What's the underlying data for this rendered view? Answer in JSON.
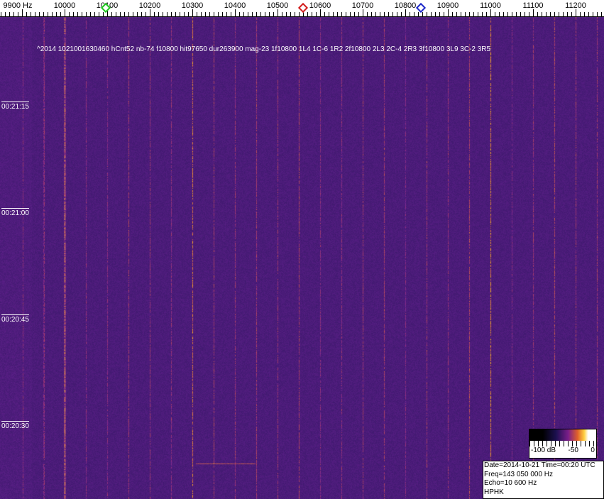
{
  "freq_axis": {
    "labels": [
      "9900 Hz",
      "10000",
      "10100",
      "10200",
      "10300",
      "10400",
      "10500",
      "10600",
      "10700",
      "10800",
      "10900",
      "11000",
      "11100",
      "11200"
    ]
  },
  "markers": [
    {
      "name": "green-marker",
      "freq_hz": 10100,
      "color": "#1ec81e"
    },
    {
      "name": "red-marker",
      "freq_hz": 10563,
      "color": "#d21e1e"
    },
    {
      "name": "blue-marker",
      "freq_hz": 10840,
      "color": "#1e28c8"
    }
  ],
  "time_labels": [
    "00:21:15",
    "00:21:00",
    "00:20:45",
    "00:20:30"
  ],
  "meteor_text": "^2014 1021001630460 hCnt52 nb-74 f10800 hit97650 dur263900 mag-23 1f10800 1L4 1C-6 1R2 2f10800 2L3 2C-4 2R3 3f10800 3L9 3C-2 3R5",
  "scale": {
    "labels": [
      "-100 dB",
      "-50",
      "0"
    ]
  },
  "info": {
    "date_time": "Date=2014-10-21 Time=00:20 UTC",
    "freq": "Freq=143 050 000 Hz",
    "echo": "Echo=10 600 Hz",
    "station": "HPHK"
  }
}
